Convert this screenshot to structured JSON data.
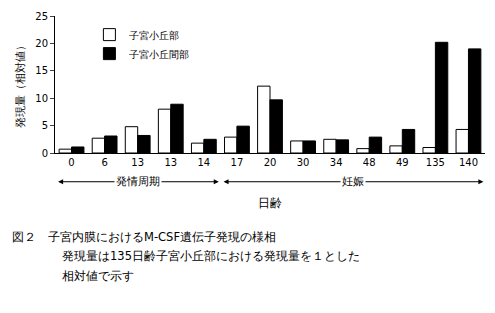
{
  "chart_data": {
    "type": "bar",
    "categories": [
      "0",
      "6",
      "13",
      "13",
      "14",
      "17",
      "20",
      "30",
      "34",
      "48",
      "49",
      "135",
      "140"
    ],
    "series": [
      {
        "name": "子宮小丘部",
        "color": "#ffffff",
        "values": [
          0.7,
          2.7,
          4.8,
          8.0,
          1.8,
          2.9,
          12.2,
          2.2,
          2.5,
          0.8,
          1.3,
          1.0,
          4.3
        ]
      },
      {
        "name": "子宮小丘間部",
        "color": "#000000",
        "values": [
          1.1,
          3.1,
          3.2,
          8.9,
          2.5,
          4.9,
          9.7,
          2.2,
          2.4,
          2.9,
          4.3,
          20.2,
          19.0
        ]
      }
    ],
    "y_label": "発現量（相対値）",
    "x_label": "日齢",
    "ylim": [
      0,
      25
    ],
    "yticks": [
      0,
      5,
      10,
      15,
      20,
      25
    ],
    "grid": false,
    "legend": "top-left",
    "groups": [
      {
        "label": "発情周期",
        "first": 0,
        "last": 4
      },
      {
        "label": "妊娠",
        "first": 5,
        "last": 12
      }
    ],
    "caption": [
      "図２　子宮内膜におけるM-CSF遺伝子発現の様相",
      "発現量は135日齢子宮小丘部における発現量を１とした",
      "相対値で示す"
    ]
  }
}
